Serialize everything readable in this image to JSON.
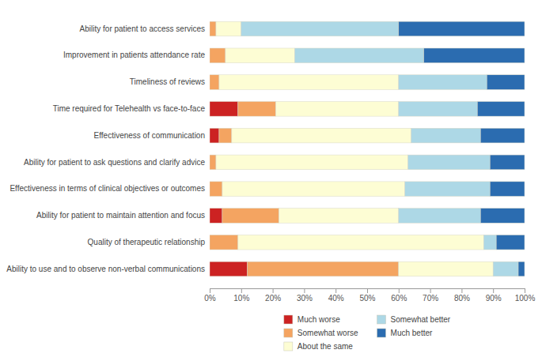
{
  "chart_data": {
    "type": "bar",
    "orientation": "horizontal",
    "stacked": true,
    "categories": [
      "Ability for patient to access services",
      "Improvement in patients attendance rate",
      "Timeliness of reviews",
      "Time required for Telehealth vs face-to-face",
      "Effectiveness of communication",
      "Ability for patient to ask questions and clarify advice",
      "Effectiveness in terms of clinical objectives or outcomes",
      "Ability for patient to maintain attention and focus",
      "Quality of therapeutic relationship",
      "Ability to use and to observe non-verbal communications"
    ],
    "series": [
      {
        "name": "Much worse",
        "color": "#cc2222",
        "values": [
          0,
          0,
          0,
          9,
          3,
          0,
          0,
          4,
          0,
          12
        ]
      },
      {
        "name": "Somewhat worse",
        "color": "#f4a461",
        "values": [
          2,
          5,
          3,
          12,
          4,
          2,
          4,
          18,
          9,
          48
        ]
      },
      {
        "name": "About the same",
        "color": "#fdfdd4",
        "values": [
          8,
          22,
          57,
          39,
          57,
          61,
          58,
          38,
          78,
          30
        ]
      },
      {
        "name": "Somewhat better",
        "color": "#add8e6",
        "values": [
          50,
          41,
          28,
          25,
          22,
          26,
          27,
          26,
          4,
          8
        ]
      },
      {
        "name": "Much better",
        "color": "#2b6cb0",
        "values": [
          40,
          32,
          12,
          15,
          14,
          11,
          11,
          14,
          9,
          2
        ]
      }
    ],
    "xlim": [
      0,
      100
    ],
    "xticks": [
      {
        "value": 0,
        "label": "0%"
      },
      {
        "value": 10,
        "label": "10%"
      },
      {
        "value": 20,
        "label": "20%"
      },
      {
        "value": 30,
        "label": "30%"
      },
      {
        "value": 40,
        "label": "40%"
      },
      {
        "value": 50,
        "label": "50%"
      },
      {
        "value": 60,
        "label": "60%"
      },
      {
        "value": 70,
        "label": "70%"
      },
      {
        "value": 80,
        "label": "80%"
      },
      {
        "value": 90,
        "label": "90%"
      },
      {
        "value": 100,
        "label": "100%"
      }
    ],
    "grid": false,
    "legend": "bottom"
  }
}
